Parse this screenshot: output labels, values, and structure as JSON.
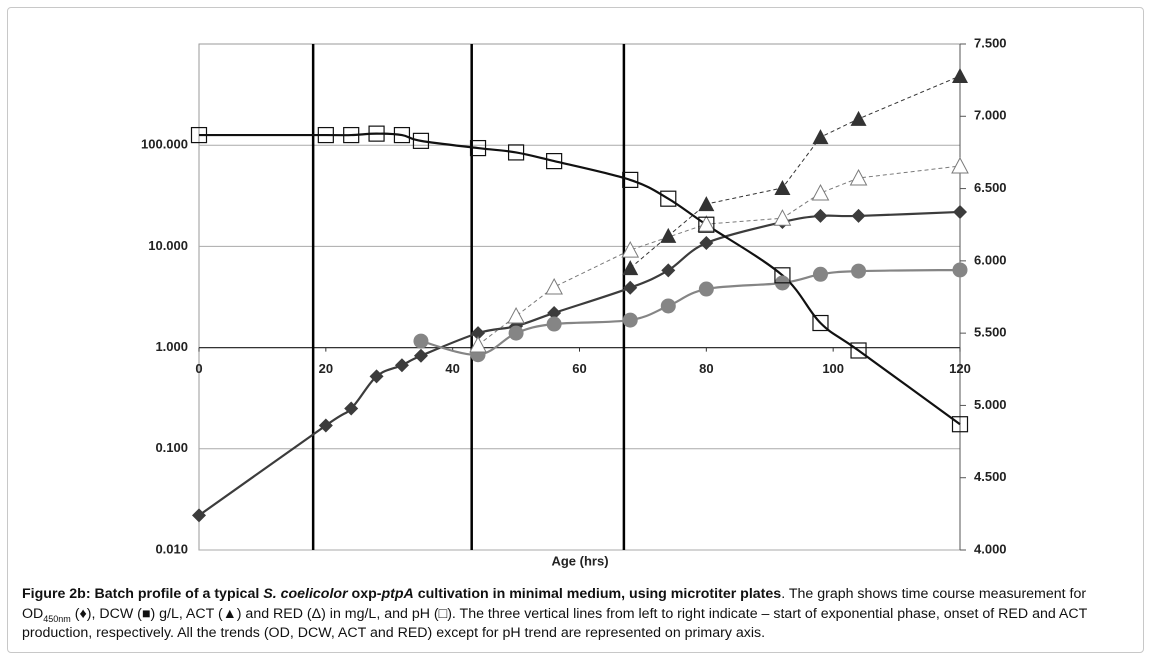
{
  "chart_data": {
    "type": "line",
    "xlabel": "Age (hrs)",
    "xlim": [
      0,
      120
    ],
    "xticks": [
      0,
      20,
      40,
      60,
      80,
      100,
      120
    ],
    "ylim": [
      0.01,
      1000
    ],
    "ylog": true,
    "yticks": [
      {
        "value": 0.01,
        "label": "0.010"
      },
      {
        "value": 0.1,
        "label": "0.100"
      },
      {
        "value": 1,
        "label": "1.000"
      },
      {
        "value": 10,
        "label": "10.000"
      },
      {
        "value": 100,
        "label": "100.000"
      }
    ],
    "y2lim": [
      4,
      7.5
    ],
    "y2ticks": [
      {
        "value": 4,
        "label": "4.000"
      },
      {
        "value": 4.5,
        "label": "4.500"
      },
      {
        "value": 5,
        "label": "5.000"
      },
      {
        "value": 5.5,
        "label": "5.500"
      },
      {
        "value": 6,
        "label": "6.000"
      },
      {
        "value": 6.5,
        "label": "6.500"
      },
      {
        "value": 7,
        "label": "7.000"
      },
      {
        "value": 7.5,
        "label": "7.500"
      }
    ],
    "grid": true,
    "vlines": [
      18,
      43,
      67
    ],
    "series": [
      {
        "color": "#3c3c3c",
        "marker": "diamond",
        "line": "solid",
        "x": [
          0,
          20,
          24,
          28,
          32,
          35,
          44,
          50,
          56,
          68,
          74,
          80,
          92,
          98,
          104,
          120
        ],
        "values": [
          0.022,
          0.17,
          0.25,
          0.52,
          0.67,
          0.83,
          1.39,
          1.63,
          2.2,
          3.9,
          5.8,
          10.8,
          17.4,
          20,
          20,
          21.9
        ]
      },
      {
        "color": "#858585",
        "marker": "circle",
        "line": "solid",
        "x": [
          35,
          44,
          50,
          56,
          68,
          74,
          80,
          92,
          98,
          104,
          120
        ],
        "values": [
          1.16,
          0.85,
          1.39,
          1.71,
          1.87,
          2.58,
          3.79,
          4.35,
          5.3,
          5.7,
          5.85
        ]
      },
      {
        "color": "#333333",
        "marker": "triangle",
        "line": "dashed",
        "x": [
          68,
          74,
          80,
          92,
          98,
          104,
          120
        ],
        "values": [
          6.1,
          12.7,
          26.2,
          37.8,
          120,
          182,
          483
        ]
      },
      {
        "color": "#7a7a7a",
        "marker": "open-triangle",
        "line": "dashed",
        "x": [
          44,
          50,
          56,
          68,
          80,
          92,
          98,
          104,
          120
        ],
        "values": [
          1.06,
          2.05,
          3.97,
          9.2,
          16.6,
          19,
          33.7,
          47.4,
          62.3
        ]
      },
      {
        "color": "#111111",
        "marker": "open-square",
        "line": "solid",
        "axis": "y2",
        "x": [
          0,
          20,
          24,
          28,
          32,
          35,
          44,
          50,
          56,
          68,
          74,
          80,
          92,
          98,
          104,
          120
        ],
        "values": [
          6.87,
          6.87,
          6.87,
          6.88,
          6.87,
          6.83,
          6.78,
          6.75,
          6.69,
          6.56,
          6.43,
          6.25,
          5.9,
          5.57,
          5.38,
          4.87
        ]
      }
    ]
  },
  "caption": [
    "Figure 2b: Batch profile of a typical ",
    "S. coelicolor",
    " oxp-",
    "ptpA",
    " cultivation in minimal medium, using microtiter plates",
    ". The graph shows time course measurement for OD",
    "450nm",
    " (♦), DCW (■) g/L, ACT (▲) and RED (Δ) in mg/L, and pH (□). The three vertical lines from left to right indicate – start of exponential phase, onset of RED and ACT production, respectively. All the trends (OD, DCW, ACT and RED) except for pH trend are represented on primary axis."
  ]
}
